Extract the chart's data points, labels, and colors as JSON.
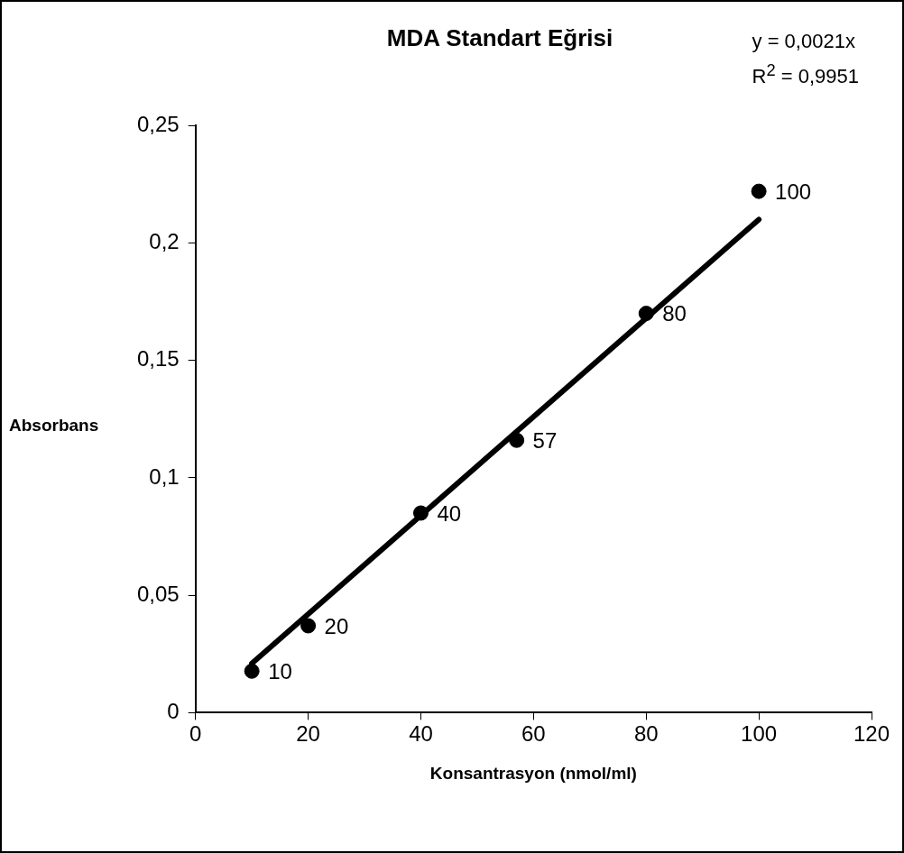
{
  "chart_data": {
    "type": "scatter",
    "title": "MDA Standart Eğrisi",
    "xlabel": "Konsantrasyon (nmol/ml)",
    "ylabel": "Absorbans",
    "annotations": [
      "y = 0,0021x",
      "R$^{2}$ = 0,9951",
      {
        "text": "10",
        "x": 10,
        "y": 0.0177
      },
      {
        "text": "20",
        "x": 20,
        "y": 0.037
      },
      {
        "text": "40",
        "x": 40,
        "y": 0.085
      },
      {
        "text": "57",
        "x": 57,
        "y": 0.116
      },
      {
        "text": "80",
        "x": 80,
        "y": 0.17
      },
      {
        "text": "100",
        "x": 100,
        "y": 0.222
      }
    ],
    "xlim": [
      0,
      120
    ],
    "xticks": [
      0,
      20,
      40,
      60,
      80,
      100,
      120
    ],
    "ylim": [
      0,
      0.25
    ],
    "yticks": [
      0,
      {
        "value": 0.05,
        "label": "0,05"
      },
      {
        "value": 0.1,
        "label": "0,1"
      },
      {
        "value": 0.15,
        "label": "0,15"
      },
      {
        "value": 0.2,
        "label": "0,2"
      },
      {
        "value": 0.25,
        "label": "0,25"
      }
    ],
    "legend": false,
    "series": [
      {
        "type": "line",
        "color": "#000000",
        "marker": "none",
        "x": [
          10,
          100
        ],
        "values": [
          0.021,
          0.21
        ]
      },
      {
        "color": "#000000",
        "marker": "circle",
        "x": [
          10,
          20,
          40,
          57,
          80,
          100
        ],
        "values": [
          0.0177,
          0.037,
          0.085,
          0.116,
          0.17,
          0.222
        ]
      }
    ]
  }
}
